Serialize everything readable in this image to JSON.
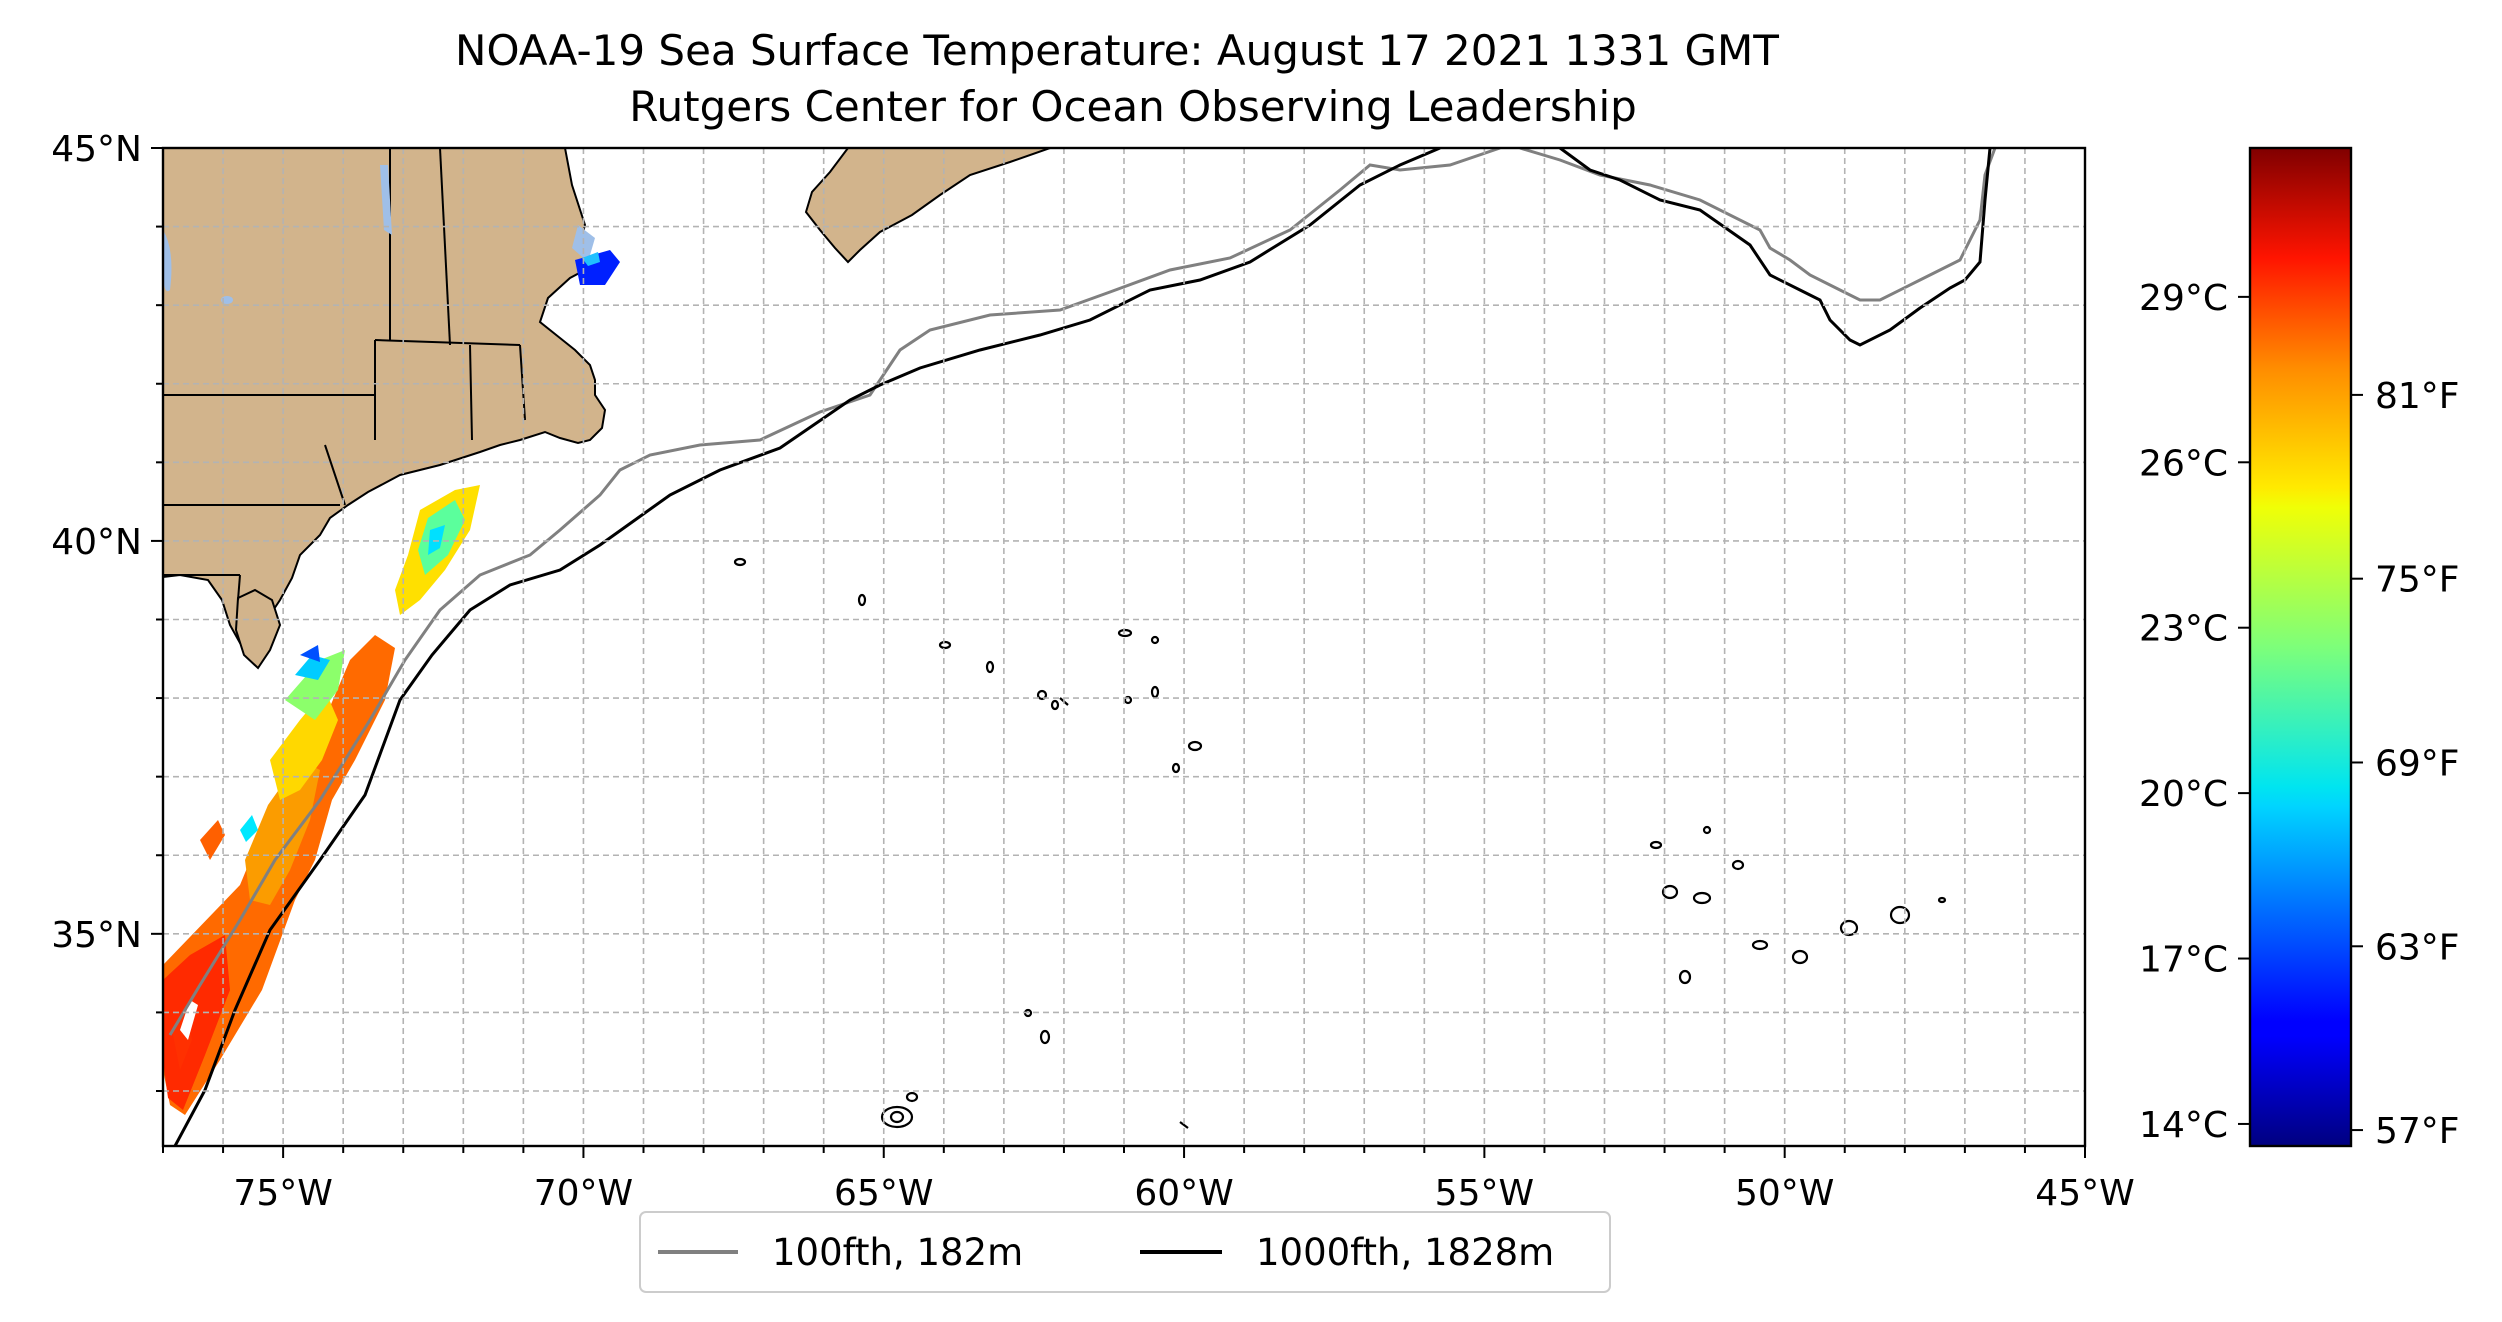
{
  "title": {
    "line1": "NOAA-19 Sea Surface Temperature: August 17 2021 1331 GMT",
    "line2": "Rutgers Center for Ocean Observing Leadership"
  },
  "map": {
    "lon_range": [
      -77,
      -45
    ],
    "lat_range": [
      32.3,
      45
    ],
    "lon_ticks": [
      {
        "value": -75,
        "label": "75°W"
      },
      {
        "value": -70,
        "label": "70°W"
      },
      {
        "value": -65,
        "label": "65°W"
      },
      {
        "value": -60,
        "label": "60°W"
      },
      {
        "value": -55,
        "label": "55°W"
      },
      {
        "value": -50,
        "label": "50°W"
      },
      {
        "value": -45,
        "label": "45°W"
      }
    ],
    "lat_ticks": [
      {
        "value": 45,
        "label": "45°N"
      },
      {
        "value": 40,
        "label": "40°N"
      },
      {
        "value": 35,
        "label": "35°N"
      }
    ],
    "gridlines": true,
    "grid_spacing_deg": 1,
    "colors": {
      "land": "#d2b48c",
      "lakes": "#9fbfe8",
      "isobath_100": "#808080",
      "isobath_1000": "#000000"
    }
  },
  "colorbar": {
    "colormap": "jet",
    "range_c": [
      13.6,
      31.7
    ],
    "celsius_ticks": [
      {
        "value": 14,
        "label": "14°C"
      },
      {
        "value": 17,
        "label": "17°C"
      },
      {
        "value": 20,
        "label": "20°C"
      },
      {
        "value": 23,
        "label": "23°C"
      },
      {
        "value": 26,
        "label": "26°C"
      },
      {
        "value": 29,
        "label": "29°C"
      }
    ],
    "fahrenheit_ticks": [
      {
        "value": 57,
        "label": "57°F"
      },
      {
        "value": 63,
        "label": "63°F"
      },
      {
        "value": 69,
        "label": "69°F"
      },
      {
        "value": 75,
        "label": "75°F"
      },
      {
        "value": 81,
        "label": "81°F"
      }
    ]
  },
  "legend": {
    "entries": [
      {
        "label": "100fth, 182m",
        "color": "#808080"
      },
      {
        "label": "1000fth, 1828m",
        "color": "#000000"
      }
    ]
  }
}
